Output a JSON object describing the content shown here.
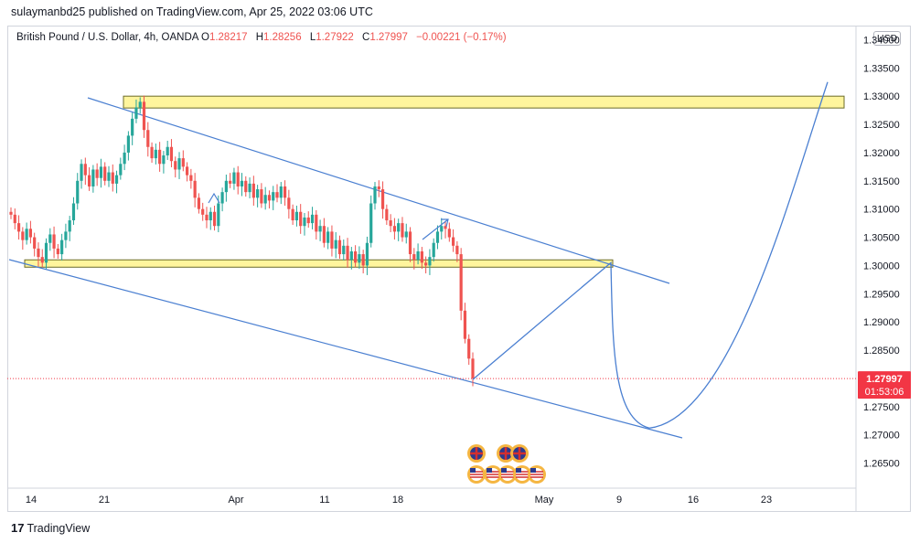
{
  "header": {
    "published": "sulaymanbd25 published on TradingView.com, Apr 25, 2022 03:06 UTC"
  },
  "legend": {
    "symbol": "British Pound / U.S. Dollar, 4h, OANDA",
    "o_label": "O",
    "o": "1.28217",
    "h_label": "H",
    "h": "1.28256",
    "l_label": "L",
    "l": "1.27922",
    "c_label": "C",
    "c": "1.27997",
    "change": "−0.00221 (−0.17%)"
  },
  "currency_button": "USD",
  "footer": {
    "brand": "TradingView"
  },
  "colors": {
    "up": "#26a69a",
    "down": "#ef5350",
    "drawing": "#4a7fd1",
    "zone_fill": "#fff59d",
    "price_label": "#f23645"
  },
  "chart_data": {
    "type": "candlestick",
    "y_ticks": [
      "1.34000",
      "1.33500",
      "1.33000",
      "1.32500",
      "1.32000",
      "1.31500",
      "1.31000",
      "1.30500",
      "1.30000",
      "1.29500",
      "1.29000",
      "1.28500",
      "1.28000",
      "1.27500",
      "1.27000",
      "1.26500"
    ],
    "y_range": [
      1.2612,
      1.3425
    ],
    "x_ticks": [
      "14",
      "21",
      "Apr",
      "11",
      "18",
      "May",
      "9",
      "16",
      "23"
    ],
    "last_price": "1.27997",
    "countdown": "01:53:06",
    "close_series": [
      1.309,
      1.3075,
      1.306,
      1.3045,
      1.3065,
      1.305,
      1.303,
      1.3015,
      1.3005,
      1.304,
      1.3055,
      1.303,
      1.302,
      1.3045,
      1.306,
      1.308,
      1.311,
      1.315,
      1.318,
      1.316,
      1.314,
      1.317,
      1.3155,
      1.3175,
      1.315,
      1.3165,
      1.3145,
      1.316,
      1.318,
      1.32,
      1.323,
      1.326,
      1.328,
      1.329,
      1.324,
      1.321,
      1.319,
      1.3205,
      1.318,
      1.3195,
      1.321,
      1.3185,
      1.317,
      1.319,
      1.3175,
      1.316,
      1.315,
      1.312,
      1.31,
      1.309,
      1.308,
      1.3095,
      1.307,
      1.311,
      1.313,
      1.315,
      1.3145,
      1.3165,
      1.314,
      1.315,
      1.313,
      1.3145,
      1.312,
      1.3135,
      1.311,
      1.3125,
      1.3115,
      1.313,
      1.312,
      1.314,
      1.312,
      1.31,
      1.308,
      1.3095,
      1.307,
      1.3085,
      1.3075,
      1.309,
      1.306,
      1.307,
      1.304,
      1.306,
      1.303,
      1.3045,
      1.302,
      1.3035,
      1.301,
      1.3025,
      1.3005,
      1.302,
      1.3,
      1.304,
      1.311,
      1.314,
      1.3135,
      1.31,
      1.308,
      1.307,
      1.306,
      1.3075,
      1.305,
      1.306,
      1.302,
      1.301,
      1.3025,
      1.3005,
      1.3,
      1.3015,
      1.304,
      1.306,
      1.307,
      1.3065,
      1.305,
      1.3035,
      1.302,
      1.292,
      1.287,
      1.2835,
      1.28
    ],
    "annotations": {
      "resistance_zone": [
        1.3279,
        1.33
      ],
      "support_zone": [
        1.2997,
        1.301
      ],
      "projection": [
        {
          "date": "Apr 25",
          "value": 1.2798
        },
        {
          "date": "May 8",
          "value": 1.3005
        },
        {
          "date": "May 13",
          "value": 1.2712
        },
        {
          "date": "May 28",
          "value": 1.3325
        }
      ]
    }
  }
}
